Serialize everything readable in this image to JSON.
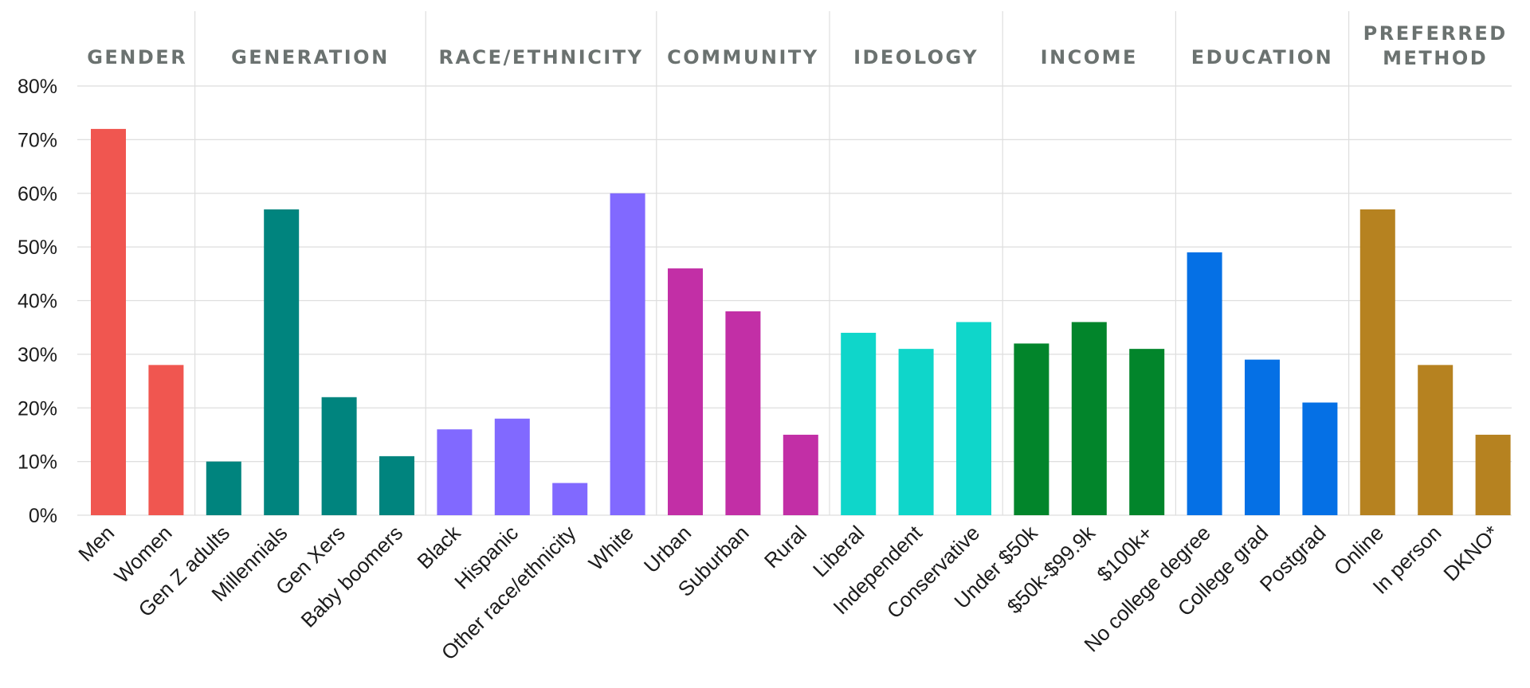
{
  "chart_data": {
    "type": "bar",
    "ylim": [
      0,
      80
    ],
    "yticks": [
      "0%",
      "10%",
      "20%",
      "30%",
      "40%",
      "50%",
      "60%",
      "70%",
      "80%"
    ],
    "grid": true,
    "groups": [
      {
        "label": [
          "GENDER"
        ],
        "color": "#f05650",
        "categories": [
          "Men",
          "Women"
        ],
        "values": [
          72,
          28
        ]
      },
      {
        "label": [
          "GENERATION"
        ],
        "color": "#00847e",
        "categories": [
          "Gen Z adults",
          "Millennials",
          "Gen Xers",
          "Baby boomers"
        ],
        "values": [
          10,
          57,
          22,
          11
        ]
      },
      {
        "label": [
          "RACE/ETHNICITY"
        ],
        "color": "#8169ff",
        "categories": [
          "Black",
          "Hispanic",
          "Other race/ethnicity",
          "White"
        ],
        "values": [
          16,
          18,
          6,
          60
        ]
      },
      {
        "label": [
          "COMMUNITY"
        ],
        "color": "#c22fa6",
        "categories": [
          "Urban",
          "Suburban",
          "Rural"
        ],
        "values": [
          46,
          38,
          15
        ]
      },
      {
        "label": [
          "IDEOLOGY"
        ],
        "color": "#0fd6ca",
        "categories": [
          "Liberal",
          "Independent",
          "Conservative"
        ],
        "values": [
          34,
          31,
          36
        ]
      },
      {
        "label": [
          "INCOME"
        ],
        "color": "#02852b",
        "categories": [
          "Under $50k",
          "$50k-$99.9k",
          "$100k+"
        ],
        "values": [
          32,
          36,
          31
        ]
      },
      {
        "label": [
          "EDUCATION"
        ],
        "color": "#0570e5",
        "categories": [
          "No college degree",
          "College grad",
          "Postgrad"
        ],
        "values": [
          49,
          29,
          21
        ]
      },
      {
        "label": [
          "PREFERRED",
          "METHOD"
        ],
        "color": "#b68220",
        "categories": [
          "Online",
          "In person",
          "DKNO*"
        ],
        "values": [
          57,
          28,
          15
        ]
      }
    ]
  }
}
